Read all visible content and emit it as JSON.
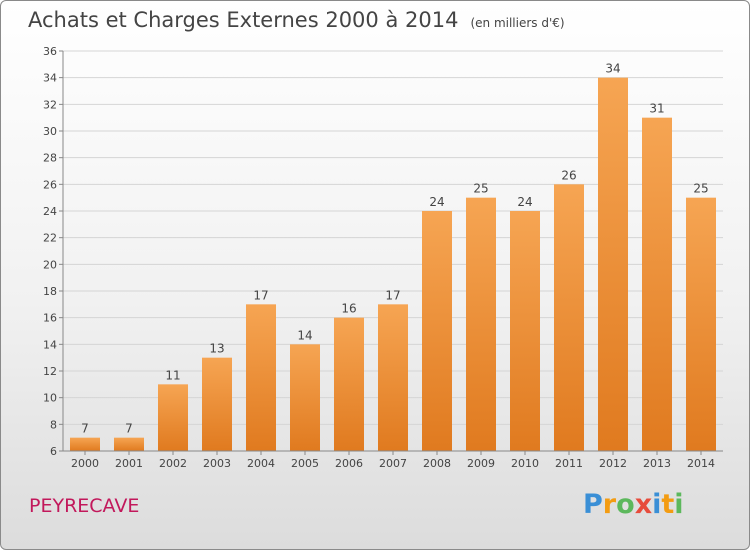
{
  "header": {
    "title": "Achats et Charges Externes 2000 à 2014",
    "subtitle": "(en milliers d'€)"
  },
  "footer": {
    "commune": "PEYRECAVE",
    "logo": {
      "letters": [
        "P",
        "r",
        "o",
        "x",
        "i",
        "t",
        "i"
      ],
      "colors": [
        "#3a8fd6",
        "#f39c12",
        "#5cb85c",
        "#e74c3c",
        "#3a8fd6",
        "#f39c12",
        "#5cb85c"
      ]
    }
  },
  "chart_data": {
    "type": "bar",
    "title": "Achats et Charges Externes 2000 à 2014",
    "subtitle": "(en milliers d'€)",
    "categories": [
      "2000",
      "2001",
      "2002",
      "2003",
      "2004",
      "2005",
      "2006",
      "2007",
      "2008",
      "2009",
      "2010",
      "2011",
      "2012",
      "2013",
      "2014"
    ],
    "values": [
      7,
      7,
      11,
      13,
      17,
      14,
      16,
      17,
      24,
      25,
      24,
      26,
      34,
      31,
      25
    ],
    "ylim": [
      6,
      36
    ],
    "yticks": [
      6,
      8,
      10,
      12,
      14,
      16,
      18,
      20,
      22,
      24,
      26,
      28,
      30,
      32,
      34,
      36
    ],
    "grid": true,
    "legend": "none",
    "colors": {
      "bar_top": "#f6a553",
      "bar_bottom": "#e07a1f",
      "grid": "#d5d5d5",
      "axis": "#888888",
      "label": "#444444"
    }
  }
}
